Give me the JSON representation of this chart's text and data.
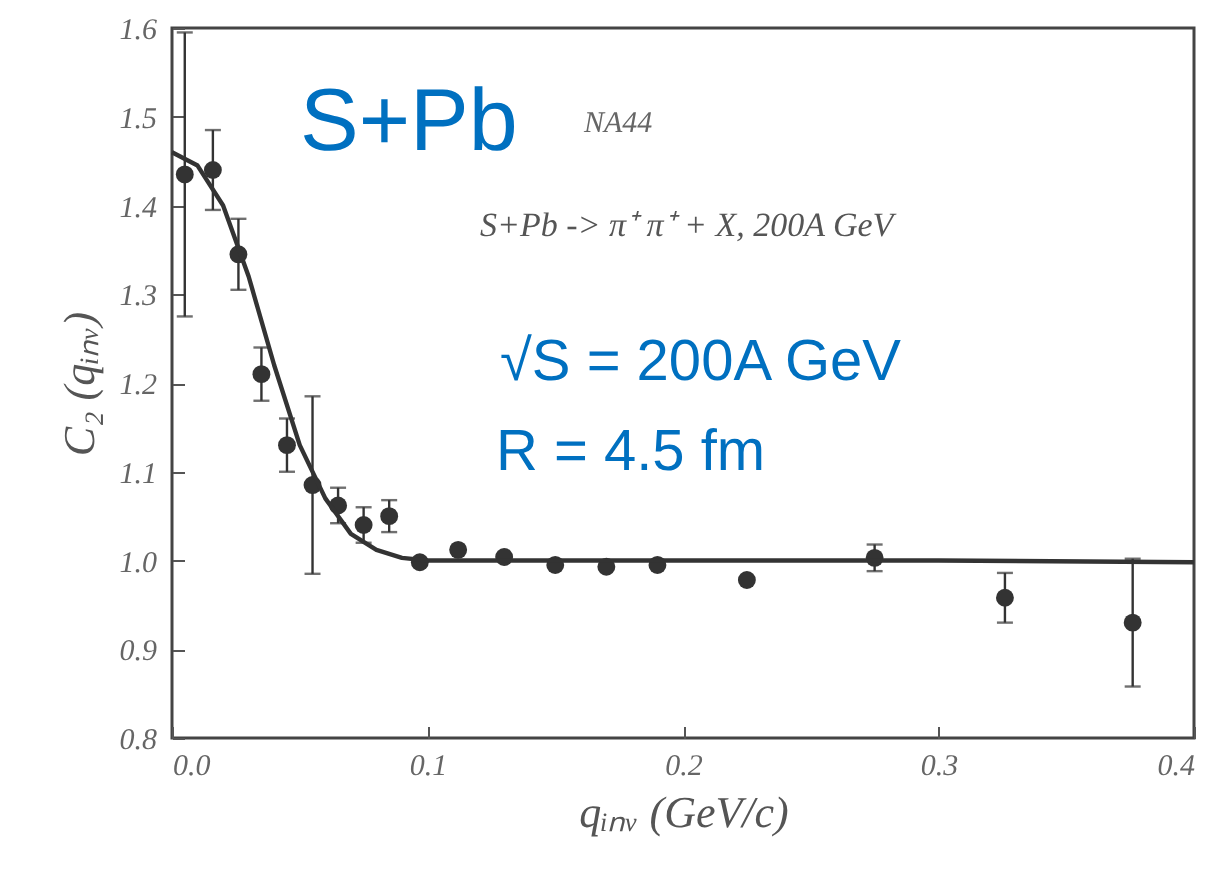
{
  "chart_data": {
    "type": "scatter",
    "xlabel": "qᵢₙᵥ (GeV/c)",
    "ylabel": "C₂ (qᵢₙᵥ)",
    "annotations": [
      "S+Pb",
      "NA44",
      "S+Pb -> π⁺ π⁺ + X,  200A GeV",
      "√S =  200A GeV",
      "R = 4.5 fm"
    ],
    "xlim": [
      0,
      0.4
    ],
    "xticks": [
      {
        "value": 0,
        "label": "0.0"
      },
      0.1,
      0.2,
      0.3,
      0.4
    ],
    "ylim": [
      0.8,
      1.6
    ],
    "yticks": [
      0.8,
      0.9,
      {
        "value": 1,
        "label": "1.0"
      },
      1.1,
      1.2,
      1.3,
      1.4,
      1.5,
      1.6
    ],
    "series": [
      {
        "color": "#333333",
        "marker": "circle",
        "x": [
          0.005,
          0.016,
          0.026,
          0.035,
          0.045,
          0.055,
          0.065,
          0.075,
          0.085,
          0.097,
          0.112,
          0.13,
          0.15,
          0.17,
          0.19,
          0.225,
          0.275,
          0.326,
          0.376
        ],
        "values": [
          1.435,
          1.44,
          1.345,
          1.21,
          1.13,
          1.085,
          1.062,
          1.04,
          1.05,
          0.998,
          1.012,
          1.004,
          0.995,
          0.993,
          0.995,
          0.978,
          1.003,
          0.958,
          0.93
        ],
        "errors": [
          0.16,
          0.045,
          0.04,
          0.03,
          0.03,
          0.1,
          0.02,
          0.02,
          0.018,
          null,
          null,
          null,
          null,
          null,
          null,
          null,
          0.015,
          0.028,
          0.072
        ]
      },
      {
        "type": "line",
        "color": "#333333",
        "x": [
          0,
          0.01,
          0.02,
          0.03,
          0.04,
          0.05,
          0.06,
          0.07,
          0.08,
          0.09,
          0.1,
          0.2,
          0.3,
          0.4
        ],
        "values": [
          1.46,
          1.445,
          1.4,
          1.32,
          1.22,
          1.13,
          1.07,
          1.03,
          1.012,
          1.003,
          1.0,
          1.0,
          1.0,
          0.998
        ]
      }
    ]
  }
}
